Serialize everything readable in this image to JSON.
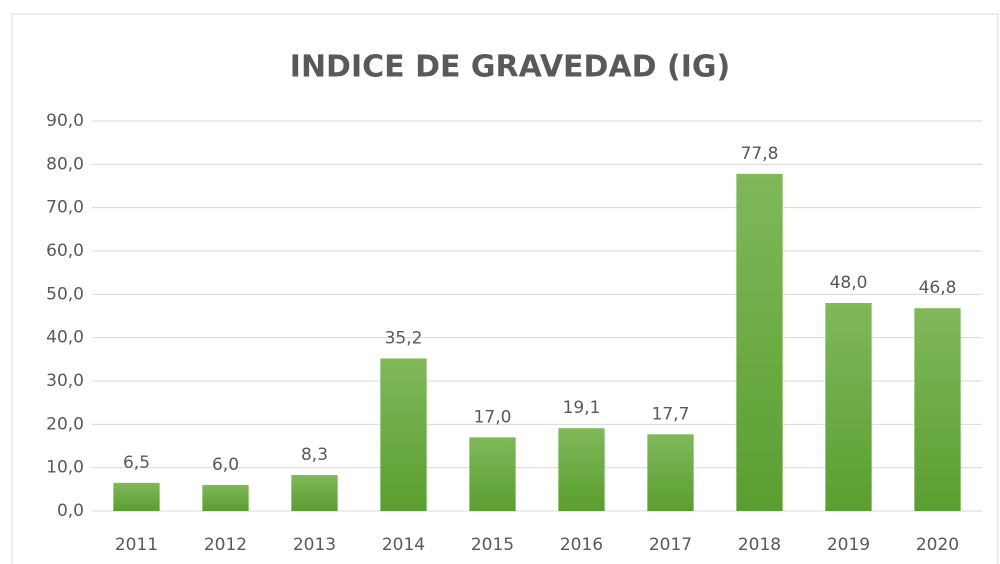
{
  "chart_data": {
    "type": "bar",
    "title": "INDICE DE GRAVEDAD (IG)",
    "categories": [
      "2011",
      "2012",
      "2013",
      "2014",
      "2015",
      "2016",
      "2017",
      "2018",
      "2019",
      "2020"
    ],
    "values": [
      6.5,
      6.0,
      8.3,
      35.2,
      17.0,
      19.1,
      17.7,
      77.8,
      48.0,
      46.8
    ],
    "value_labels": [
      "6,5",
      "6,0",
      "8,3",
      "35,2",
      "17,0",
      "19,1",
      "17,7",
      "77,8",
      "48,0",
      "46,8"
    ],
    "color": "#6aab41",
    "ylim": [
      0,
      90
    ],
    "yticks": [
      {
        "value": 0,
        "label": "0,0"
      },
      {
        "value": 10,
        "label": "10,0"
      },
      {
        "value": 20,
        "label": "20,0"
      },
      {
        "value": 30,
        "label": "30,0"
      },
      {
        "value": 40,
        "label": "40,0"
      },
      {
        "value": 50,
        "label": "50,0"
      },
      {
        "value": 60,
        "label": "60,0"
      },
      {
        "value": 70,
        "label": "70,0"
      },
      {
        "value": 80,
        "label": "80,0"
      },
      {
        "value": 90,
        "label": "90,0"
      }
    ],
    "grid": true
  }
}
